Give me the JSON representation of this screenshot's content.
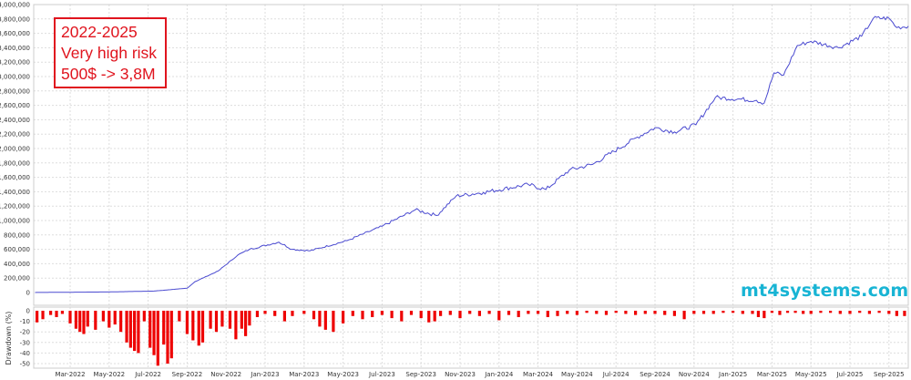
{
  "chart_data": [
    {
      "type": "line",
      "name": "equity",
      "title": "",
      "xlabel": "",
      "ylabel": "",
      "x_unit": "months since Jan-2022",
      "ylim": [
        0,
        4000000
      ],
      "yticks": [
        0,
        200000,
        400000,
        600000,
        800000,
        1000000,
        1200000,
        1400000,
        1600000,
        1800000,
        2000000,
        2200000,
        2400000,
        2600000,
        2800000,
        3000000,
        3200000,
        3400000,
        3600000,
        3800000,
        4000000
      ],
      "ytick_labels": [
        "0",
        "200,000",
        "400,000",
        "600,000",
        "800,000",
        "1,000,000",
        "1,200,000",
        "1,400,000",
        "1,600,000",
        "1,800,000",
        "2,000,000",
        "2,200,000",
        "2,400,000",
        "2,600,000",
        "2,800,000",
        "3,000,000",
        "3,200,000",
        "3,400,000",
        "3,600,000",
        "3,800,000",
        "4,000,000"
      ],
      "grid": true,
      "color": "#4a4ad0",
      "points": [
        [
          0.2,
          500
        ],
        [
          4,
          8000
        ],
        [
          6.3,
          20000
        ],
        [
          8,
          60000
        ],
        [
          8.4,
          150000
        ],
        [
          9.6,
          300000
        ],
        [
          10.6,
          520000
        ],
        [
          11.2,
          600000
        ],
        [
          12.7,
          700000
        ],
        [
          13.4,
          600000
        ],
        [
          14.3,
          580000
        ],
        [
          16.2,
          720000
        ],
        [
          18,
          920000
        ],
        [
          19.7,
          1150000
        ],
        [
          20.8,
          1070000
        ],
        [
          21.8,
          1340000
        ],
        [
          23.2,
          1390000
        ],
        [
          25.5,
          1500000
        ],
        [
          26.4,
          1430000
        ],
        [
          27.6,
          1700000
        ],
        [
          28.8,
          1780000
        ],
        [
          31.1,
          2160000
        ],
        [
          32,
          2290000
        ],
        [
          33,
          2230000
        ],
        [
          34.1,
          2330000
        ],
        [
          35.1,
          2710000
        ],
        [
          37.2,
          2670000
        ],
        [
          37.6,
          2630000
        ],
        [
          38.1,
          3050000
        ],
        [
          38.6,
          3020000
        ],
        [
          39.3,
          3430000
        ],
        [
          40,
          3490000
        ],
        [
          41.4,
          3400000
        ],
        [
          42.6,
          3560000
        ],
        [
          43.2,
          3810000
        ],
        [
          44,
          3810000
        ],
        [
          44.4,
          3680000
        ],
        [
          45,
          3700000
        ]
      ]
    },
    {
      "type": "bar",
      "name": "drawdown",
      "ylabel": "Drawdown (%)",
      "ylim": [
        -55,
        0
      ],
      "yticks": [
        0,
        -10,
        -20,
        -30,
        -40,
        -50
      ],
      "ytick_labels": [
        "0",
        "-10",
        "-20",
        "-30",
        "-40",
        "-50"
      ],
      "color": "#ee0000",
      "bars": [
        [
          0.3,
          -11
        ],
        [
          0.6,
          -8
        ],
        [
          1,
          -4
        ],
        [
          1.3,
          -6
        ],
        [
          1.6,
          -3
        ],
        [
          2,
          -12
        ],
        [
          2.3,
          -17
        ],
        [
          2.5,
          -20
        ],
        [
          2.7,
          -22
        ],
        [
          2.9,
          -15
        ],
        [
          3.3,
          -18
        ],
        [
          3.7,
          -10
        ],
        [
          4,
          -16
        ],
        [
          4.3,
          -13
        ],
        [
          4.6,
          -20
        ],
        [
          4.9,
          -30
        ],
        [
          5.1,
          -35
        ],
        [
          5.3,
          -38
        ],
        [
          5.5,
          -40
        ],
        [
          5.8,
          -10
        ],
        [
          6.1,
          -35
        ],
        [
          6.3,
          -42
        ],
        [
          6.5,
          -52
        ],
        [
          6.8,
          -32
        ],
        [
          7,
          -50
        ],
        [
          7.2,
          -45
        ],
        [
          7.6,
          -10
        ],
        [
          8,
          -22
        ],
        [
          8.3,
          -28
        ],
        [
          8.6,
          -33
        ],
        [
          8.8,
          -30
        ],
        [
          9.2,
          -17
        ],
        [
          9.5,
          -20
        ],
        [
          9.8,
          -15
        ],
        [
          10.2,
          -17
        ],
        [
          10.5,
          -27
        ],
        [
          10.8,
          -17
        ],
        [
          11,
          -24
        ],
        [
          11.2,
          -14
        ],
        [
          11.6,
          -6
        ],
        [
          12,
          -3
        ],
        [
          12.5,
          -5
        ],
        [
          13,
          -10
        ],
        [
          13.4,
          -5
        ],
        [
          14,
          -3
        ],
        [
          14.5,
          -8
        ],
        [
          14.8,
          -15
        ],
        [
          15.1,
          -18
        ],
        [
          15.5,
          -20
        ],
        [
          16,
          -12
        ],
        [
          16.5,
          -5
        ],
        [
          17,
          -8
        ],
        [
          17.5,
          -6
        ],
        [
          18,
          -4
        ],
        [
          18.5,
          -7
        ],
        [
          19,
          -10
        ],
        [
          19.5,
          -4
        ],
        [
          20,
          -7
        ],
        [
          20.4,
          -11
        ],
        [
          20.7,
          -10
        ],
        [
          21,
          -5
        ],
        [
          21.5,
          -4
        ],
        [
          22,
          -7
        ],
        [
          22.5,
          -3
        ],
        [
          23,
          -5
        ],
        [
          23.5,
          -3
        ],
        [
          24,
          -9
        ],
        [
          24.5,
          -4
        ],
        [
          25,
          -6
        ],
        [
          25.5,
          -3
        ],
        [
          26,
          -3
        ],
        [
          26.5,
          -6
        ],
        [
          27,
          -5
        ],
        [
          27.5,
          -3
        ],
        [
          28,
          -4
        ],
        [
          28.5,
          -2
        ],
        [
          29,
          -3
        ],
        [
          29.5,
          -4
        ],
        [
          30,
          -2
        ],
        [
          30.5,
          -3
        ],
        [
          31,
          -4
        ],
        [
          31.5,
          -3
        ],
        [
          32,
          -3
        ],
        [
          32.5,
          -4
        ],
        [
          33,
          -5
        ],
        [
          33.5,
          -8
        ],
        [
          34,
          -3
        ],
        [
          34.5,
          -3
        ],
        [
          35,
          -3
        ],
        [
          35.5,
          -2
        ],
        [
          36,
          -2
        ],
        [
          36.5,
          -3
        ],
        [
          37,
          -3
        ],
        [
          37.3,
          -6
        ],
        [
          37.6,
          -7
        ],
        [
          38,
          -2
        ],
        [
          38.4,
          -4
        ],
        [
          38.8,
          -2
        ],
        [
          39.2,
          -2
        ],
        [
          39.6,
          -3
        ],
        [
          40,
          -3
        ],
        [
          40.5,
          -2
        ],
        [
          41,
          -2
        ],
        [
          41.5,
          -3
        ],
        [
          42,
          -3
        ],
        [
          42.5,
          -2
        ],
        [
          43,
          -3
        ],
        [
          43.5,
          -2
        ],
        [
          44,
          -3
        ],
        [
          44.4,
          -5
        ],
        [
          44.8,
          -5
        ]
      ]
    }
  ],
  "x_axis": {
    "tick_months": [
      2,
      4,
      6,
      8,
      10,
      12,
      14,
      16,
      18,
      20,
      22,
      24,
      26,
      28,
      30,
      32,
      34,
      36,
      38,
      40,
      42,
      44
    ],
    "tick_labels": [
      "Mar-2022",
      "May-2022",
      "Jul-2022",
      "Sep-2022",
      "Nov-2022",
      "Jan-2023",
      "Mar-2023",
      "May-2023",
      "Jul-2023",
      "Sep-2023",
      "Nov-2023",
      "Jan-2024",
      "Mar-2024",
      "May-2024",
      "Jul-2024",
      "Sep-2024",
      "Nov-2024",
      "Jan-2025",
      "Mar-2025",
      "May-2025",
      "Jul-2025",
      "Sep-2025"
    ]
  },
  "annotation": {
    "lines": [
      "2022-2025",
      "Very high risk",
      "500$ -> 3,8M"
    ],
    "color": "#e0141e"
  },
  "watermark": {
    "text": "mt4systems.com",
    "color": "#18b4d4"
  }
}
